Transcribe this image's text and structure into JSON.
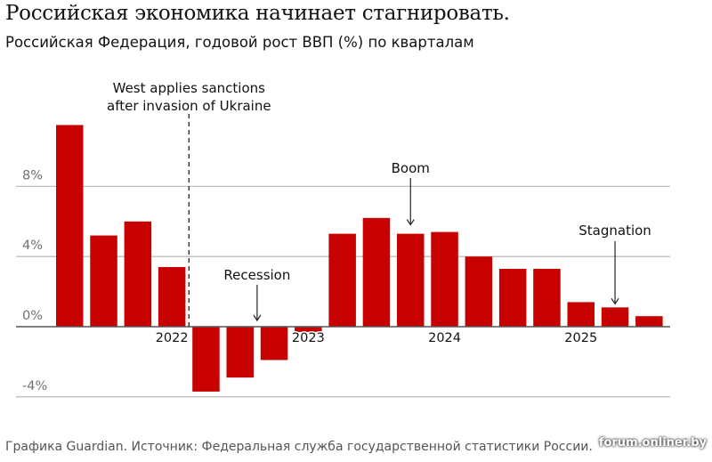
{
  "title": "Российская экономика начинает стагнировать.",
  "subtitle": "Российская Федерация, годовой рост ВВП (%) по кварталам",
  "footer": "Графика Guardian. Источник: Федеральная служба государственной статистики России.",
  "watermark": "forum.onliner.by",
  "chart_data": {
    "type": "bar",
    "title": "Российская экономика начинает стагнировать.",
    "ylabel": "",
    "xlabel": "",
    "ylim": [
      -4,
      12
    ],
    "y_ticks": [
      {
        "value": 8,
        "label": "8%"
      },
      {
        "value": 4,
        "label": "4%"
      },
      {
        "value": 0,
        "label": "0%"
      },
      {
        "value": -4,
        "label": "-4%"
      }
    ],
    "grid": true,
    "bar_color": "#c70000",
    "values": [
      11.5,
      5.2,
      6.0,
      3.4,
      -3.7,
      -2.9,
      -1.9,
      -0.3,
      5.3,
      6.2,
      5.3,
      5.4,
      4.0,
      3.3,
      3.3,
      1.4,
      1.1,
      0.6
    ],
    "year_labels": [
      {
        "bar_index": 3,
        "label": "2022"
      },
      {
        "bar_index": 7,
        "label": "2023"
      },
      {
        "bar_index": 11,
        "label": "2024"
      },
      {
        "bar_index": 15,
        "label": "2025"
      }
    ],
    "annotations": [
      {
        "text_lines": [
          "West applies sanctions",
          "after invasion of Ukraine"
        ],
        "type": "vline",
        "after_bar_index": 3
      },
      {
        "text_lines": [
          "Recession"
        ],
        "type": "arrow",
        "between_bars": [
          5,
          6
        ]
      },
      {
        "text_lines": [
          "Boom"
        ],
        "type": "arrow",
        "bar_index": 10
      },
      {
        "text_lines": [
          "Stagnation"
        ],
        "type": "arrow",
        "bar_index": 16
      }
    ]
  }
}
